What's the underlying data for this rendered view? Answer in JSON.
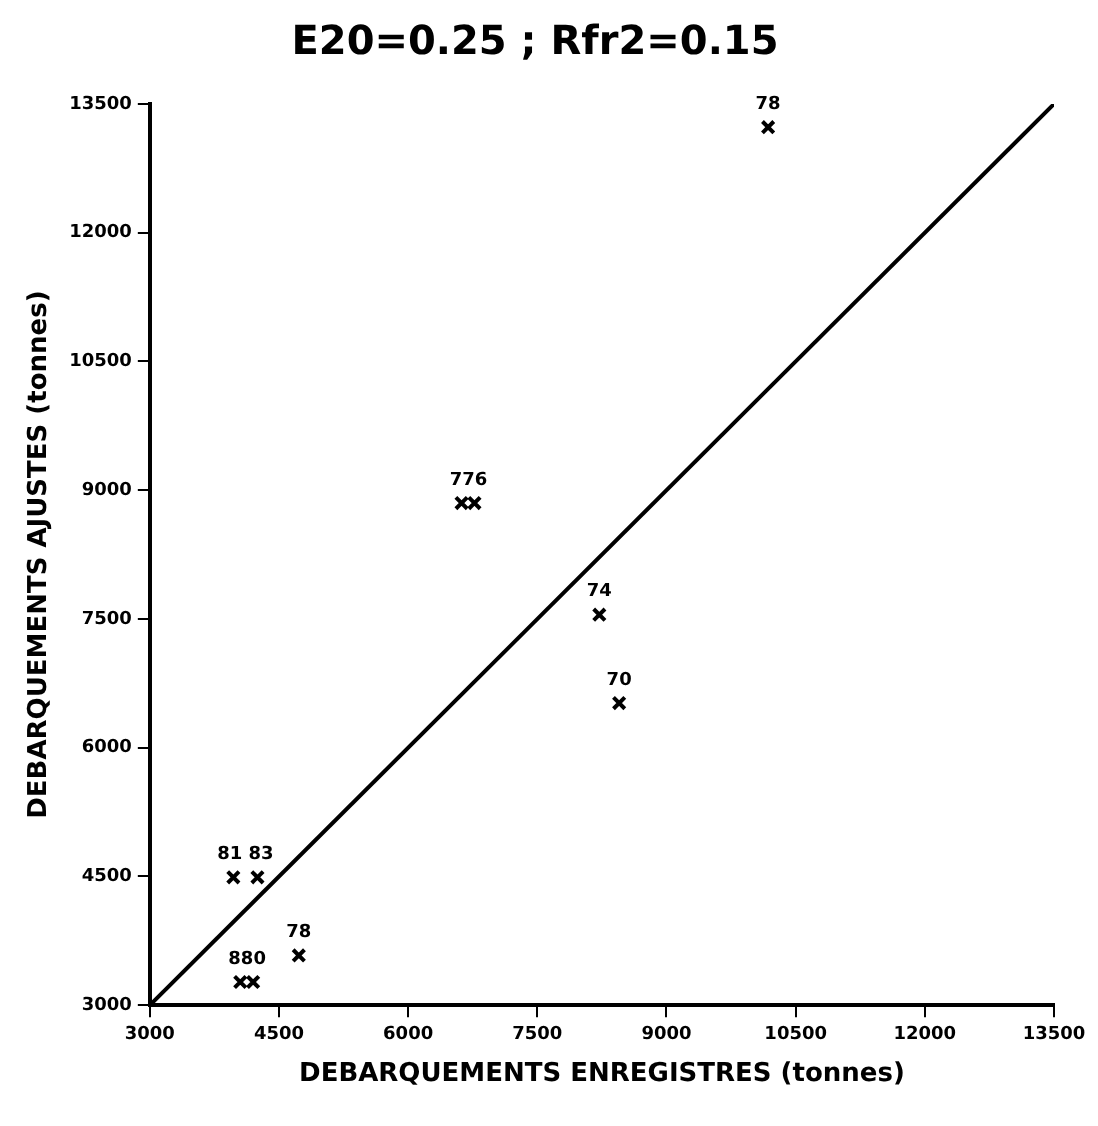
{
  "chart_data": {
    "type": "scatter",
    "title": "E20=0.25 ; Rfr2=0.15",
    "xlabel": "DEBARQUEMENTS ENREGISTRES (tonnes)",
    "ylabel": "DEBARQUEMENTS AJUSTES (tonnes)",
    "xlim": [
      3000,
      13500
    ],
    "ylim": [
      3000,
      13500
    ],
    "xticks": [
      3000,
      4500,
      6000,
      7500,
      9000,
      10500,
      12000,
      13500
    ],
    "yticks": [
      3000,
      4500,
      6000,
      7500,
      9000,
      10500,
      12000,
      13500
    ],
    "grid": false,
    "legend": false,
    "marker": "cross",
    "series": [
      {
        "color": "#000000",
        "x": [
          10180,
          6620,
          6770,
          8220,
          8450,
          3970,
          4250,
          4730,
          4050,
          4200
        ],
        "values": [
          13230,
          8850,
          8850,
          7550,
          6520,
          4490,
          4490,
          3580,
          3270,
          3270
        ]
      },
      {
        "type": "line",
        "color": "#000000",
        "line_style": "solid",
        "marker": "none",
        "x": [
          3000,
          13500
        ],
        "values": [
          3000,
          13500
        ]
      }
    ],
    "annotations": [
      {
        "text": "78",
        "x": 10180,
        "y": 13230
      },
      {
        "text": "776",
        "x": 6700,
        "y": 8850
      },
      {
        "text": "74",
        "x": 8220,
        "y": 7550
      },
      {
        "text": "70",
        "x": 8450,
        "y": 6520
      },
      {
        "text": "81 83",
        "x": 4110,
        "y": 4490
      },
      {
        "text": "78",
        "x": 4730,
        "y": 3580
      },
      {
        "text": "880",
        "x": 4130,
        "y": 3270
      }
    ]
  }
}
